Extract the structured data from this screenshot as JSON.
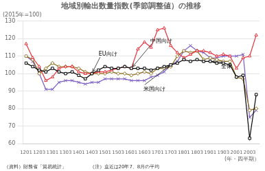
{
  "chart_data": {
    "type": "line",
    "title": "地域別輸出数量指数(季節調整値）の推移",
    "subtitle": "(2015年=100)",
    "xlabel": "(年・四半期）",
    "footnotes": [
      "（資料）財務省「貿易統計」",
      "（注）直近は20年7、8月の平均"
    ],
    "categories": [
      "1201",
      null,
      "1203",
      null,
      "1301",
      null,
      "1303",
      null,
      "1401",
      null,
      "1403",
      null,
      "1501",
      null,
      "1503",
      null,
      "1601",
      null,
      "1603",
      null,
      "1701",
      null,
      "1703",
      null,
      "1801",
      null,
      "1803",
      null,
      "1901",
      null,
      "1903",
      null,
      "2001",
      null,
      "2003",
      null
    ],
    "ylim": [
      60,
      130
    ],
    "yticks": [
      60,
      70,
      80,
      90,
      100,
      110,
      120,
      130
    ],
    "grid": "y",
    "series": [
      {
        "name": "全体",
        "color": "#000000",
        "marker": "square",
        "values": [
          106,
          104,
          102,
          101,
          103,
          101,
          100,
          101,
          99,
          97,
          100,
          102,
          104,
          103,
          103,
          104,
          103,
          103,
          103,
          102,
          103,
          104,
          105,
          106,
          108,
          107,
          108,
          107,
          107,
          106,
          106,
          105,
          98,
          99,
          63,
          88
        ]
      },
      {
        "name": "中国向け",
        "color": "#e8303a",
        "marker": "triangle",
        "values": [
          117,
          109,
          104,
          96,
          98,
          103,
          104,
          104,
          101,
          100,
          100,
          101,
          101,
          102,
          103,
          104,
          103,
          114,
          118,
          115,
          125,
          126,
          116,
          112,
          109,
          111,
          113,
          113,
          112,
          110,
          111,
          110,
          103,
          109,
          110,
          122
        ]
      },
      {
        "name": "EU向け",
        "color": "#8b6914",
        "marker": "diamond",
        "values": [
          110,
          108,
          100,
          103,
          106,
          104,
          104,
          104,
          103,
          101,
          100,
          100,
          100,
          101,
          100,
          100,
          99,
          100,
          101,
          100,
          103,
          103,
          104,
          110,
          113,
          112,
          113,
          108,
          109,
          108,
          107,
          107,
          98,
          97,
          79,
          80
        ]
      },
      {
        "name": "米国向け",
        "color": "#7b5cc4",
        "marker": "x",
        "values": [
          110,
          107,
          100,
          91,
          91,
          95,
          96,
          96,
          95,
          94,
          95,
          95,
          97,
          97,
          97,
          97,
          96,
          96,
          96,
          98,
          99,
          101,
          105,
          107,
          113,
          116,
          113,
          112,
          109,
          109,
          110,
          110,
          110,
          111,
          75,
          79
        ]
      }
    ],
    "annotations": [
      {
        "text": "中国向け",
        "series": "中国向け",
        "x": "1601"
      },
      {
        "text": "EU向け",
        "series": "EU向け",
        "x": "1403"
      },
      {
        "text": "全体",
        "series": "全体",
        "x": "1901"
      },
      {
        "text": "米国向け",
        "series": "米国向け",
        "x": "1703"
      }
    ]
  }
}
